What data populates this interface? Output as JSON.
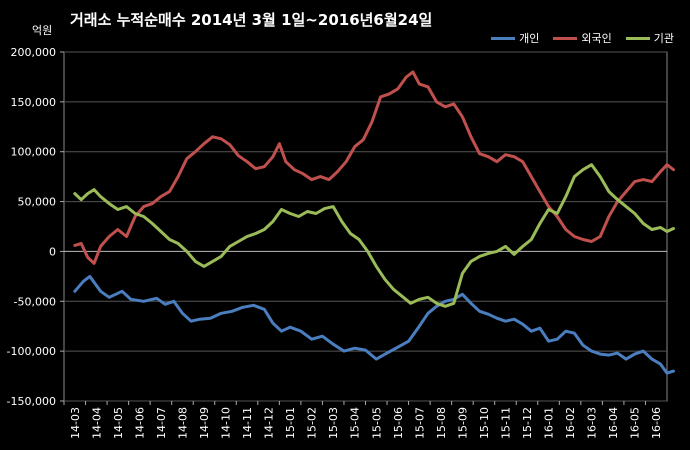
{
  "title": "거래소  누적순매수 2014년 3월 1일~2016년6월24일",
  "unit": "억원",
  "chart_data": {
    "type": "line",
    "ylim": [
      -150000,
      200000
    ],
    "yticks": [
      200000,
      150000,
      100000,
      50000,
      0,
      -50000,
      -100000,
      -150000
    ],
    "ytick_labels": [
      "200,000",
      "150,000",
      "100,000",
      "50,000",
      "0",
      "-50,000",
      "-100,000",
      "-150,000"
    ],
    "x_labels": [
      "14-03",
      "14-04",
      "14-05",
      "14-06",
      "14-07",
      "14-08",
      "14-09",
      "14-10",
      "14-11",
      "14-12",
      "15-01",
      "15-02",
      "15-03",
      "15-04",
      "15-05",
      "15-06",
      "15-07",
      "15-08",
      "15-09",
      "15-10",
      "15-11",
      "15-12",
      "16-01",
      "16-02",
      "16-03",
      "16-04",
      "16-05",
      "16-06"
    ],
    "grid": true,
    "legend_position": "top-right",
    "series": [
      {
        "name": "개인",
        "color": "#4a7ebf",
        "points": [
          [
            0,
            -40000
          ],
          [
            0.4,
            -30000
          ],
          [
            0.7,
            -25000
          ],
          [
            1.2,
            -40000
          ],
          [
            1.6,
            -46000
          ],
          [
            2.2,
            -40000
          ],
          [
            2.6,
            -48000
          ],
          [
            3.2,
            -50000
          ],
          [
            3.8,
            -47000
          ],
          [
            4.2,
            -53000
          ],
          [
            4.6,
            -50000
          ],
          [
            5.0,
            -62000
          ],
          [
            5.4,
            -70000
          ],
          [
            5.8,
            -68000
          ],
          [
            6.3,
            -67000
          ],
          [
            6.8,
            -62000
          ],
          [
            7.3,
            -60000
          ],
          [
            7.8,
            -56000
          ],
          [
            8.3,
            -54000
          ],
          [
            8.8,
            -58000
          ],
          [
            9.2,
            -72000
          ],
          [
            9.6,
            -80000
          ],
          [
            10.0,
            -76000
          ],
          [
            10.5,
            -80000
          ],
          [
            11.0,
            -88000
          ],
          [
            11.5,
            -85000
          ],
          [
            12.0,
            -93000
          ],
          [
            12.5,
            -100000
          ],
          [
            13.0,
            -97000
          ],
          [
            13.5,
            -99000
          ],
          [
            14.0,
            -108000
          ],
          [
            14.5,
            -102000
          ],
          [
            15.0,
            -96000
          ],
          [
            15.5,
            -90000
          ],
          [
            16.0,
            -75000
          ],
          [
            16.4,
            -62000
          ],
          [
            16.8,
            -55000
          ],
          [
            17.2,
            -50000
          ],
          [
            17.6,
            -48000
          ],
          [
            18.0,
            -43000
          ],
          [
            18.4,
            -52000
          ],
          [
            18.8,
            -60000
          ],
          [
            19.2,
            -63000
          ],
          [
            19.6,
            -67000
          ],
          [
            20.0,
            -70000
          ],
          [
            20.4,
            -68000
          ],
          [
            20.8,
            -73000
          ],
          [
            21.2,
            -80000
          ],
          [
            21.6,
            -77000
          ],
          [
            22.0,
            -90000
          ],
          [
            22.4,
            -88000
          ],
          [
            22.8,
            -80000
          ],
          [
            23.2,
            -82000
          ],
          [
            23.6,
            -94000
          ],
          [
            24.0,
            -100000
          ],
          [
            24.4,
            -103000
          ],
          [
            24.8,
            -104000
          ],
          [
            25.2,
            -102000
          ],
          [
            25.6,
            -108000
          ],
          [
            26.0,
            -103000
          ],
          [
            26.4,
            -100000
          ],
          [
            26.8,
            -108000
          ],
          [
            27.2,
            -113000
          ],
          [
            27.5,
            -122000
          ],
          [
            27.8,
            -120000
          ]
        ]
      },
      {
        "name": "외국인",
        "color": "#c0504d",
        "points": [
          [
            0,
            6000
          ],
          [
            0.3,
            8000
          ],
          [
            0.6,
            -6000
          ],
          [
            0.9,
            -12000
          ],
          [
            1.2,
            5000
          ],
          [
            1.6,
            15000
          ],
          [
            2.0,
            22000
          ],
          [
            2.4,
            15000
          ],
          [
            2.8,
            35000
          ],
          [
            3.2,
            45000
          ],
          [
            3.6,
            48000
          ],
          [
            4.0,
            55000
          ],
          [
            4.4,
            60000
          ],
          [
            4.8,
            75000
          ],
          [
            5.2,
            93000
          ],
          [
            5.6,
            100000
          ],
          [
            6.0,
            108000
          ],
          [
            6.4,
            115000
          ],
          [
            6.8,
            113000
          ],
          [
            7.2,
            107000
          ],
          [
            7.6,
            96000
          ],
          [
            8.0,
            90000
          ],
          [
            8.4,
            83000
          ],
          [
            8.8,
            85000
          ],
          [
            9.2,
            95000
          ],
          [
            9.5,
            108000
          ],
          [
            9.8,
            90000
          ],
          [
            10.2,
            82000
          ],
          [
            10.6,
            78000
          ],
          [
            11.0,
            72000
          ],
          [
            11.4,
            75000
          ],
          [
            11.8,
            72000
          ],
          [
            12.2,
            80000
          ],
          [
            12.6,
            90000
          ],
          [
            13.0,
            105000
          ],
          [
            13.4,
            112000
          ],
          [
            13.8,
            130000
          ],
          [
            14.2,
            155000
          ],
          [
            14.6,
            158000
          ],
          [
            15.0,
            163000
          ],
          [
            15.4,
            175000
          ],
          [
            15.7,
            180000
          ],
          [
            16.0,
            168000
          ],
          [
            16.4,
            165000
          ],
          [
            16.8,
            150000
          ],
          [
            17.2,
            145000
          ],
          [
            17.6,
            148000
          ],
          [
            18.0,
            135000
          ],
          [
            18.4,
            115000
          ],
          [
            18.8,
            98000
          ],
          [
            19.2,
            95000
          ],
          [
            19.6,
            90000
          ],
          [
            20.0,
            97000
          ],
          [
            20.4,
            95000
          ],
          [
            20.8,
            90000
          ],
          [
            21.2,
            75000
          ],
          [
            21.6,
            60000
          ],
          [
            22.0,
            45000
          ],
          [
            22.4,
            35000
          ],
          [
            22.8,
            22000
          ],
          [
            23.2,
            15000
          ],
          [
            23.6,
            12000
          ],
          [
            24.0,
            10000
          ],
          [
            24.4,
            15000
          ],
          [
            24.8,
            35000
          ],
          [
            25.2,
            50000
          ],
          [
            25.6,
            60000
          ],
          [
            26.0,
            70000
          ],
          [
            26.4,
            72000
          ],
          [
            26.8,
            70000
          ],
          [
            27.2,
            80000
          ],
          [
            27.5,
            87000
          ],
          [
            27.8,
            82000
          ]
        ]
      },
      {
        "name": "기관",
        "color": "#9bbb59",
        "points": [
          [
            0,
            58000
          ],
          [
            0.3,
            52000
          ],
          [
            0.6,
            58000
          ],
          [
            0.9,
            62000
          ],
          [
            1.2,
            55000
          ],
          [
            1.6,
            48000
          ],
          [
            2.0,
            42000
          ],
          [
            2.4,
            45000
          ],
          [
            2.8,
            38000
          ],
          [
            3.2,
            35000
          ],
          [
            3.6,
            28000
          ],
          [
            4.0,
            20000
          ],
          [
            4.4,
            12000
          ],
          [
            4.8,
            8000
          ],
          [
            5.2,
            0
          ],
          [
            5.6,
            -10000
          ],
          [
            6.0,
            -15000
          ],
          [
            6.4,
            -10000
          ],
          [
            6.8,
            -5000
          ],
          [
            7.2,
            5000
          ],
          [
            7.6,
            10000
          ],
          [
            8.0,
            15000
          ],
          [
            8.4,
            18000
          ],
          [
            8.8,
            22000
          ],
          [
            9.2,
            30000
          ],
          [
            9.6,
            42000
          ],
          [
            10.0,
            38000
          ],
          [
            10.4,
            35000
          ],
          [
            10.8,
            40000
          ],
          [
            11.2,
            38000
          ],
          [
            11.6,
            43000
          ],
          [
            12.0,
            45000
          ],
          [
            12.4,
            30000
          ],
          [
            12.8,
            18000
          ],
          [
            13.2,
            12000
          ],
          [
            13.6,
            0
          ],
          [
            14.0,
            -15000
          ],
          [
            14.4,
            -28000
          ],
          [
            14.8,
            -38000
          ],
          [
            15.2,
            -45000
          ],
          [
            15.6,
            -52000
          ],
          [
            16.0,
            -48000
          ],
          [
            16.4,
            -46000
          ],
          [
            16.8,
            -52000
          ],
          [
            17.2,
            -55000
          ],
          [
            17.6,
            -52000
          ],
          [
            18.0,
            -22000
          ],
          [
            18.4,
            -10000
          ],
          [
            18.8,
            -5000
          ],
          [
            19.2,
            -2000
          ],
          [
            19.6,
            0
          ],
          [
            20.0,
            5000
          ],
          [
            20.4,
            -3000
          ],
          [
            20.8,
            5000
          ],
          [
            21.2,
            12000
          ],
          [
            21.6,
            28000
          ],
          [
            22.0,
            42000
          ],
          [
            22.4,
            38000
          ],
          [
            22.8,
            55000
          ],
          [
            23.2,
            75000
          ],
          [
            23.6,
            82000
          ],
          [
            24.0,
            87000
          ],
          [
            24.4,
            75000
          ],
          [
            24.8,
            60000
          ],
          [
            25.2,
            52000
          ],
          [
            25.6,
            45000
          ],
          [
            26.0,
            38000
          ],
          [
            26.4,
            28000
          ],
          [
            26.8,
            22000
          ],
          [
            27.2,
            24000
          ],
          [
            27.5,
            20000
          ],
          [
            27.8,
            23000
          ]
        ]
      }
    ]
  }
}
